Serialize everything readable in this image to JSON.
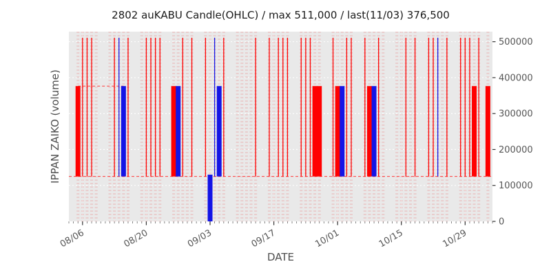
{
  "colors": {
    "up": "#ff0000",
    "down": "#1414e6",
    "plot_bg": "#e9e9e9",
    "grid": "#ffffff",
    "pale_stripe": "rgba(235,80,80,0.18)",
    "dashed_line": "#ff3b3b",
    "tick_text": "#555555"
  },
  "chart_data": {
    "type": "candlestick-ohlc",
    "title": "2802 auKABU Candle(OHLC) / max 511,000 / last(11/03) 376,500",
    "xlabel": "DATE",
    "ylabel": "IPPAN ZAIKO (volume)",
    "max_value": 511000,
    "last_date": "11/03",
    "last_value": 376500,
    "ylim": [
      0,
      528000
    ],
    "y_ticks": [
      0,
      100000,
      200000,
      300000,
      400000,
      500000
    ],
    "x_tick_labels": [
      "08/06",
      "08/20",
      "09/03",
      "09/17",
      "10/01",
      "10/15",
      "10/29"
    ],
    "date_range": [
      "08/03",
      "11/04"
    ],
    "levels": {
      "low": 125000,
      "high": 511000,
      "body_top": 376500,
      "down_top": 130000,
      "down_bottom": 0
    },
    "kind_legend": {
      "w": "thin red high-low line 125000-511000",
      "W": "thin blue high-low line 125000-511000",
      "R": "thick red body 125000-376500",
      "B": "thick blue body 125000-376500",
      "D": "thick blue body down to 0",
      "p": "pale dashed stripe only"
    },
    "segments": [
      {
        "y": 376500,
        "x0": "08/05",
        "x1": "08/15"
      },
      {
        "y": 125000,
        "x0": "08/03",
        "x1": "11/04"
      }
    ],
    "candles": [
      {
        "d": "08/05",
        "k": "R"
      },
      {
        "d": "08/06",
        "k": "w"
      },
      {
        "d": "08/07",
        "k": "w"
      },
      {
        "d": "08/08",
        "k": "w"
      },
      {
        "d": "08/09",
        "k": "p"
      },
      {
        "d": "08/12",
        "k": "p"
      },
      {
        "d": "08/13",
        "k": "w"
      },
      {
        "d": "08/14",
        "k": "W"
      },
      {
        "d": "08/15",
        "k": "B"
      },
      {
        "d": "08/16",
        "k": "w"
      },
      {
        "d": "08/19",
        "k": "p"
      },
      {
        "d": "08/20",
        "k": "w"
      },
      {
        "d": "08/21",
        "k": "w"
      },
      {
        "d": "08/22",
        "k": "w"
      },
      {
        "d": "08/23",
        "k": "w"
      },
      {
        "d": "08/26",
        "k": "R"
      },
      {
        "d": "08/27",
        "k": "B"
      },
      {
        "d": "08/28",
        "k": "w"
      },
      {
        "d": "08/29",
        "k": "p"
      },
      {
        "d": "08/30",
        "k": "w"
      },
      {
        "d": "09/02",
        "k": "w"
      },
      {
        "d": "09/03",
        "k": "D"
      },
      {
        "d": "09/04",
        "k": "W"
      },
      {
        "d": "09/05",
        "k": "B"
      },
      {
        "d": "09/06",
        "k": "w"
      },
      {
        "d": "09/09",
        "k": "p"
      },
      {
        "d": "09/10",
        "k": "p"
      },
      {
        "d": "09/11",
        "k": "p"
      },
      {
        "d": "09/12",
        "k": "p"
      },
      {
        "d": "09/13",
        "k": "w"
      },
      {
        "d": "09/16",
        "k": "w"
      },
      {
        "d": "09/17",
        "k": "p"
      },
      {
        "d": "09/18",
        "k": "w"
      },
      {
        "d": "09/19",
        "k": "w"
      },
      {
        "d": "09/20",
        "k": "w"
      },
      {
        "d": "09/23",
        "k": "w"
      },
      {
        "d": "09/24",
        "k": "w"
      },
      {
        "d": "09/25",
        "k": "w"
      },
      {
        "d": "09/26",
        "k": "R"
      },
      {
        "d": "09/27",
        "k": "R"
      },
      {
        "d": "09/30",
        "k": "w"
      },
      {
        "d": "10/01",
        "k": "R"
      },
      {
        "d": "10/02",
        "k": "B"
      },
      {
        "d": "10/03",
        "k": "w"
      },
      {
        "d": "10/04",
        "k": "w"
      },
      {
        "d": "10/07",
        "k": "w"
      },
      {
        "d": "10/08",
        "k": "R"
      },
      {
        "d": "10/09",
        "k": "B"
      },
      {
        "d": "10/10",
        "k": "w"
      },
      {
        "d": "10/11",
        "k": "p"
      },
      {
        "d": "10/14",
        "k": "p"
      },
      {
        "d": "10/15",
        "k": "p"
      },
      {
        "d": "10/16",
        "k": "w"
      },
      {
        "d": "10/17",
        "k": "p"
      },
      {
        "d": "10/18",
        "k": "w"
      },
      {
        "d": "10/21",
        "k": "w"
      },
      {
        "d": "10/22",
        "k": "w"
      },
      {
        "d": "10/23",
        "k": "W"
      },
      {
        "d": "10/24",
        "k": "p"
      },
      {
        "d": "10/25",
        "k": "w"
      },
      {
        "d": "10/28",
        "k": "w"
      },
      {
        "d": "10/29",
        "k": "w"
      },
      {
        "d": "10/30",
        "k": "w"
      },
      {
        "d": "10/31",
        "k": "R"
      },
      {
        "d": "11/01",
        "k": "w"
      },
      {
        "d": "11/03",
        "k": "R"
      }
    ]
  }
}
